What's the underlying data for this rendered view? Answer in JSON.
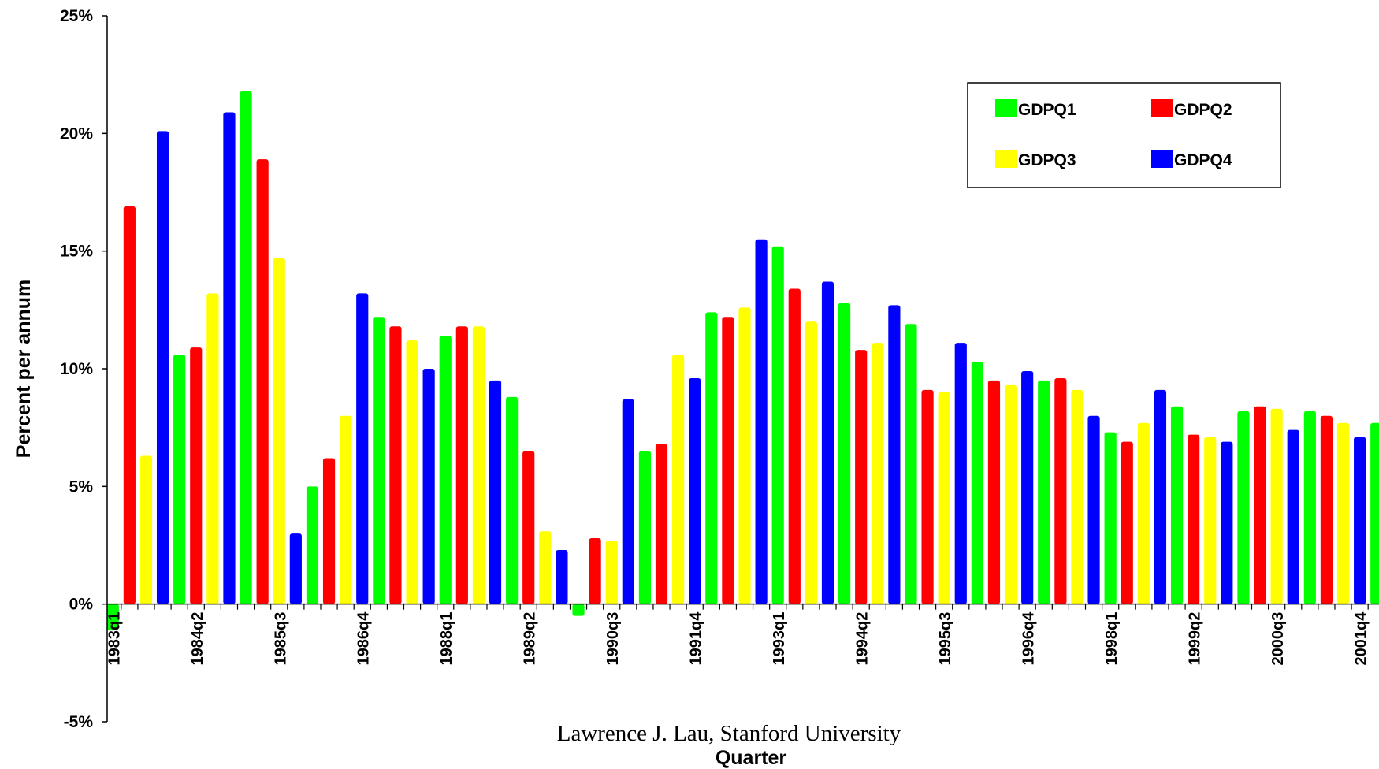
{
  "chart_data": {
    "type": "bar",
    "xlabel": "Quarter",
    "ylabel": "Percent per annum",
    "ylim": [
      -5,
      25
    ],
    "yticks": [
      -5,
      0,
      5,
      10,
      15,
      20,
      25
    ],
    "ytick_labels": [
      "-5%",
      "0%",
      "5%",
      "10%",
      "15%",
      "20%",
      "25%"
    ],
    "x_tick_labels": [
      "1983q1",
      "1984q2",
      "1985q3",
      "1986q4",
      "1988q1",
      "1989q2",
      "1990q3",
      "1991q4",
      "1993q1",
      "1994q2",
      "1995q3",
      "1996q4",
      "1998q1",
      "1999q2",
      "2000q3",
      "2001q4"
    ],
    "x_tick_every": 5,
    "footer": "Lawrence J. Lau, Stanford University",
    "legend": {
      "position": "top-right",
      "entries": [
        {
          "name": "GDPQ1",
          "color": "#00ff00"
        },
        {
          "name": "GDPQ2",
          "color": "#ff0000"
        },
        {
          "name": "GDPQ3",
          "color": "#ffff00"
        },
        {
          "name": "GDPQ4",
          "color": "#0000ff"
        }
      ]
    },
    "bar_colors": [
      "#00ff00",
      "#ff0000",
      "#ffff00",
      "#0000ff"
    ],
    "first_quarter_index": 1,
    "values": [
      -1.1,
      16.9,
      6.3,
      20.1,
      10.6,
      10.9,
      13.2,
      20.9,
      21.8,
      18.9,
      14.7,
      3.0,
      5.0,
      6.2,
      8.0,
      13.2,
      12.2,
      11.8,
      11.2,
      10.0,
      11.4,
      11.8,
      11.8,
      9.5,
      8.8,
      6.5,
      3.1,
      2.3,
      -0.5,
      2.8,
      2.7,
      8.7,
      6.5,
      6.8,
      10.6,
      9.6,
      12.4,
      12.2,
      12.6,
      15.5,
      15.2,
      13.4,
      12.0,
      13.7,
      12.8,
      10.8,
      11.1,
      12.7,
      11.9,
      9.1,
      9.0,
      11.1,
      10.3,
      9.5,
      9.3,
      9.9,
      9.5,
      9.6,
      9.1,
      8.0,
      7.3,
      6.9,
      7.7,
      9.1,
      8.4,
      7.2,
      7.1,
      6.9,
      8.2,
      8.4,
      8.3,
      7.4,
      8.2,
      8.0,
      7.7,
      7.1,
      7.7
    ]
  }
}
